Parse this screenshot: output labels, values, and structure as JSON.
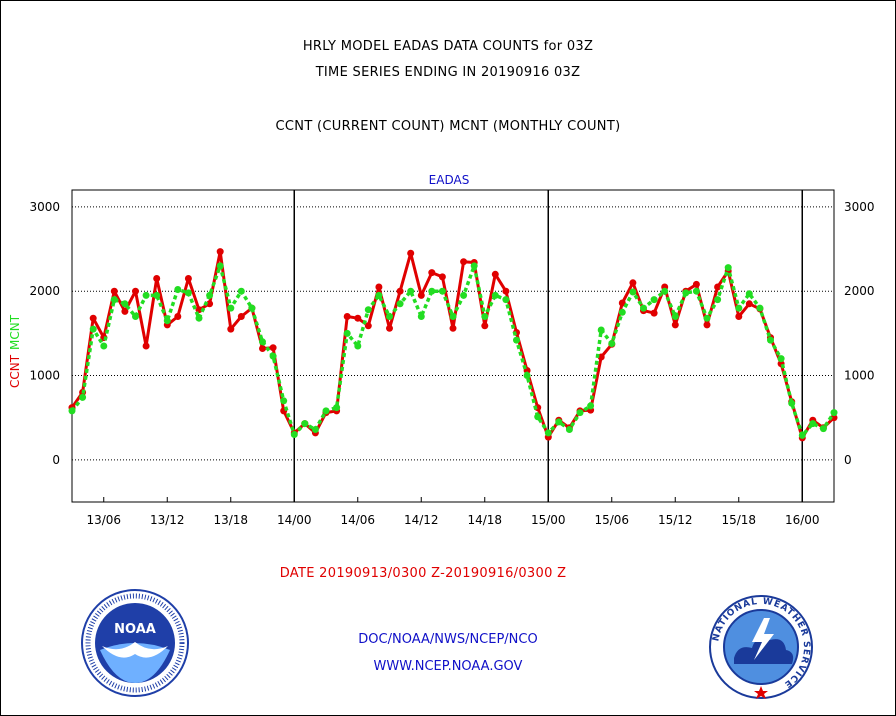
{
  "header": {
    "line1": "HRLY MODEL EADAS DATA COUNTS for 03Z",
    "line2": "TIME SERIES ENDING IN 20190916 03Z",
    "line3": "CCNT (CURRENT COUNT) MCNT (MONTHLY COUNT)"
  },
  "chart_data": {
    "type": "line",
    "title": "EADAS",
    "ylabel_ccnt": "CCNT",
    "ylabel_mcnt": "MCNT",
    "ylim": [
      -500,
      3200
    ],
    "yticks": [
      0,
      1000,
      2000,
      3000
    ],
    "xlim": [
      3,
      75
    ],
    "xticks": [
      {
        "x": 6,
        "label": "13/06"
      },
      {
        "x": 12,
        "label": "13/12"
      },
      {
        "x": 18,
        "label": "13/18"
      },
      {
        "x": 24,
        "label": "14/00"
      },
      {
        "x": 30,
        "label": "14/06"
      },
      {
        "x": 36,
        "label": "14/12"
      },
      {
        "x": 42,
        "label": "14/18"
      },
      {
        "x": 48,
        "label": "15/00"
      },
      {
        "x": 54,
        "label": "15/06"
      },
      {
        "x": 60,
        "label": "15/12"
      },
      {
        "x": 66,
        "label": "15/18"
      },
      {
        "x": 72,
        "label": "16/00"
      }
    ],
    "day_boundaries": [
      24,
      48,
      72
    ],
    "grid": true,
    "series": [
      {
        "name": "CCNT",
        "color": "#e00000",
        "style": "solid",
        "values": [
          620,
          800,
          1680,
          1450,
          2000,
          1760,
          2000,
          1350,
          2150,
          1600,
          1700,
          2150,
          1780,
          1850,
          2470,
          1550,
          1700,
          1800,
          1320,
          1330,
          580,
          320,
          430,
          320,
          560,
          580,
          1700,
          1680,
          1590,
          2050,
          1560,
          2000,
          2450,
          1950,
          2220,
          2170,
          1560,
          2350,
          2340,
          1590,
          2200,
          2000,
          1510,
          1060,
          620,
          270,
          470,
          380,
          580,
          590,
          1220,
          1370,
          1860,
          2100,
          1770,
          1740,
          2050,
          1600,
          2000,
          2080,
          1600,
          2050,
          2240,
          1700,
          1850,
          1790,
          1450,
          1140,
          690,
          260,
          470,
          380,
          500
        ]
      },
      {
        "name": "MCNT",
        "color": "#22dd22",
        "style": "dotted",
        "values": [
          580,
          740,
          1550,
          1350,
          1900,
          1850,
          1700,
          1950,
          1950,
          1650,
          2020,
          1980,
          1680,
          1950,
          2300,
          1800,
          2000,
          1800,
          1400,
          1230,
          700,
          300,
          430,
          360,
          580,
          620,
          1500,
          1350,
          1780,
          1950,
          1700,
          1850,
          2000,
          1700,
          2000,
          2000,
          1700,
          1950,
          2300,
          1700,
          1950,
          1900,
          1420,
          1000,
          510,
          320,
          450,
          360,
          560,
          640,
          1540,
          1380,
          1750,
          1990,
          1800,
          1900,
          2000,
          1700,
          1980,
          2000,
          1680,
          1900,
          2280,
          1800,
          1970,
          1800,
          1420,
          1200,
          670,
          290,
          430,
          370,
          560
        ]
      }
    ]
  },
  "footer": {
    "date_range": "DATE 20190913/0300 Z-20190916/0300 Z",
    "org": "DOC/NOAA/NWS/NCEP/NCO",
    "url": "WWW.NCEP.NOAA.GOV"
  },
  "logos": {
    "noaa_text": "NOAA",
    "nws_ring_text": "NATIONAL WEATHER SERVICE"
  },
  "colors": {
    "ccnt": "#e00000",
    "mcnt": "#22dd22",
    "title": "#1010c8",
    "noaa_blue": "#1f3fa8",
    "nws_blue": "#1a3a9a"
  }
}
